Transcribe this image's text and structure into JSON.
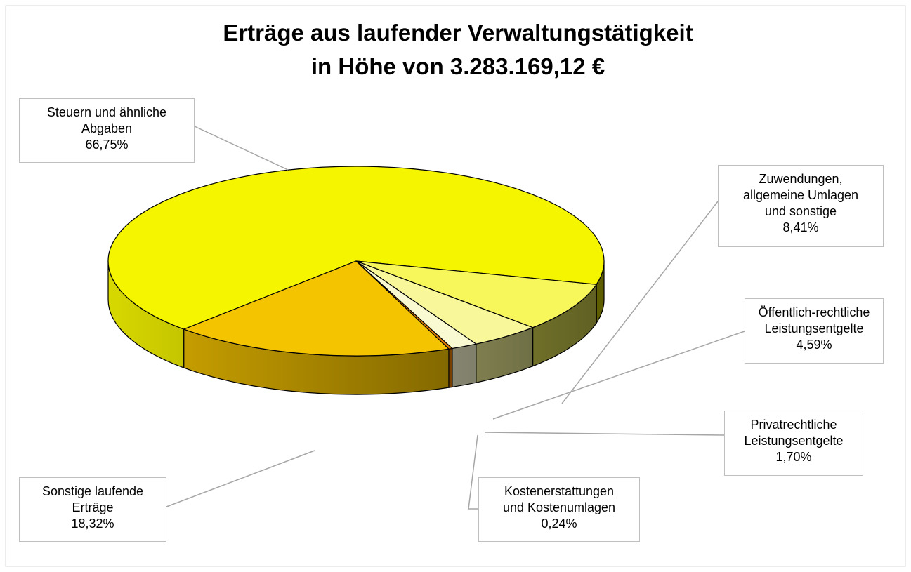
{
  "chart_data": {
    "type": "pie3d",
    "title": "Erträge aus laufender Verwaltungstätigkeit",
    "subtitle": "in Höhe von 3.283.169,12 €",
    "categories": [
      "Steuern und ähnliche\nAbgaben",
      "Zuwendungen,\nallgemeine Umlagen\nund sonstige",
      "Öffentlich-rechtliche\nLeistungsentgelte",
      "Privatrechtliche\nLeistungsentgelte",
      "Kostenerstattungen\nund Kostenumlagen",
      "Sonstige laufende\nErträge"
    ],
    "values": [
      66.75,
      8.41,
      4.59,
      1.7,
      0.24,
      18.32
    ],
    "value_labels": [
      "66,75%",
      "8,41%",
      "4,59%",
      "1,70%",
      "0,24%",
      "18,32%"
    ],
    "colors": [
      "#f5f500",
      "#f7f75c",
      "#f8f89a",
      "#fafad2",
      "#e07a00",
      "#f5c400"
    ]
  }
}
